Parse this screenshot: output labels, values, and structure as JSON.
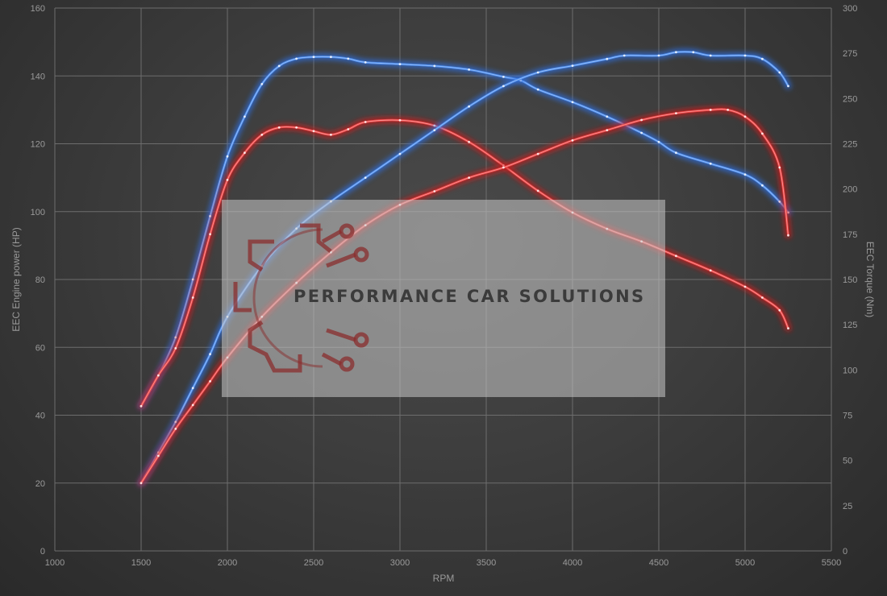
{
  "chart_data": {
    "type": "line",
    "x_axis": {
      "label": "RPM",
      "range": [
        1000,
        5500
      ],
      "ticks": [
        1000,
        1500,
        2000,
        2500,
        3000,
        3500,
        4000,
        4500,
        5000,
        5500
      ]
    },
    "y_axis_left": {
      "label": "EEC Engine power (HP)",
      "range": [
        0,
        160
      ],
      "ticks": [
        0,
        20,
        40,
        60,
        80,
        100,
        120,
        140,
        160
      ]
    },
    "y_axis_right": {
      "label": "EEC Torque (Nm)",
      "range": [
        0,
        300
      ],
      "ticks": [
        0,
        25,
        50,
        75,
        100,
        125,
        150,
        175,
        200,
        225,
        250,
        275,
        300
      ]
    },
    "grid": true,
    "watermark": "PERFORMANCE CAR SOLUTIONS",
    "series": [
      {
        "axis": "right",
        "color": "#4e8ff0",
        "glow": "#2f6fe0",
        "points": [
          [
            1500,
            80
          ],
          [
            1600,
            97
          ],
          [
            1700,
            118
          ],
          [
            1800,
            150
          ],
          [
            1900,
            185
          ],
          [
            2000,
            218
          ],
          [
            2100,
            240
          ],
          [
            2200,
            258
          ],
          [
            2300,
            268
          ],
          [
            2400,
            272
          ],
          [
            2500,
            273
          ],
          [
            2600,
            273
          ],
          [
            2700,
            272
          ],
          [
            2800,
            270
          ],
          [
            3000,
            269
          ],
          [
            3200,
            268
          ],
          [
            3400,
            266
          ],
          [
            3600,
            262
          ],
          [
            3700,
            260
          ],
          [
            3800,
            255
          ],
          [
            4000,
            248
          ],
          [
            4200,
            240
          ],
          [
            4400,
            231
          ],
          [
            4500,
            226
          ],
          [
            4600,
            220
          ],
          [
            4800,
            214
          ],
          [
            5000,
            208
          ],
          [
            5100,
            202
          ],
          [
            5200,
            193
          ],
          [
            5250,
            187
          ]
        ]
      },
      {
        "axis": "right",
        "color": "#f04848",
        "glow": "#d01e1e",
        "points": [
          [
            1500,
            80
          ],
          [
            1600,
            97
          ],
          [
            1700,
            112
          ],
          [
            1800,
            140
          ],
          [
            1900,
            175
          ],
          [
            2000,
            205
          ],
          [
            2100,
            220
          ],
          [
            2200,
            230
          ],
          [
            2300,
            234
          ],
          [
            2400,
            234
          ],
          [
            2500,
            232
          ],
          [
            2600,
            230
          ],
          [
            2700,
            233
          ],
          [
            2800,
            237
          ],
          [
            3000,
            238
          ],
          [
            3200,
            235
          ],
          [
            3400,
            226
          ],
          [
            3600,
            213
          ],
          [
            3800,
            199
          ],
          [
            4000,
            187
          ],
          [
            4200,
            178
          ],
          [
            4400,
            171
          ],
          [
            4600,
            163
          ],
          [
            4800,
            155
          ],
          [
            5000,
            146
          ],
          [
            5100,
            140
          ],
          [
            5200,
            133
          ],
          [
            5250,
            123
          ]
        ]
      },
      {
        "axis": "left",
        "color": "#4e8ff0",
        "glow": "#2f6fe0",
        "points": [
          [
            1500,
            20
          ],
          [
            1600,
            29
          ],
          [
            1700,
            38
          ],
          [
            1800,
            48
          ],
          [
            1900,
            58
          ],
          [
            2000,
            69
          ],
          [
            2200,
            84
          ],
          [
            2400,
            95
          ],
          [
            2600,
            103
          ],
          [
            2800,
            110
          ],
          [
            3000,
            117
          ],
          [
            3200,
            124
          ],
          [
            3400,
            131
          ],
          [
            3600,
            137
          ],
          [
            3800,
            141
          ],
          [
            4000,
            143
          ],
          [
            4200,
            145
          ],
          [
            4300,
            146
          ],
          [
            4500,
            146
          ],
          [
            4600,
            147
          ],
          [
            4700,
            147
          ],
          [
            4800,
            146
          ],
          [
            5000,
            146
          ],
          [
            5100,
            145
          ],
          [
            5200,
            141
          ],
          [
            5250,
            137
          ]
        ]
      },
      {
        "axis": "left",
        "color": "#f04848",
        "glow": "#d01e1e",
        "points": [
          [
            1500,
            20
          ],
          [
            1600,
            28
          ],
          [
            1700,
            36
          ],
          [
            1800,
            43
          ],
          [
            1900,
            50
          ],
          [
            2000,
            57
          ],
          [
            2200,
            69
          ],
          [
            2400,
            79
          ],
          [
            2600,
            88
          ],
          [
            2800,
            96
          ],
          [
            3000,
            102
          ],
          [
            3200,
            106
          ],
          [
            3400,
            110
          ],
          [
            3600,
            113
          ],
          [
            3800,
            117
          ],
          [
            4000,
            121
          ],
          [
            4200,
            124
          ],
          [
            4400,
            127
          ],
          [
            4600,
            129
          ],
          [
            4800,
            130
          ],
          [
            4900,
            130
          ],
          [
            5000,
            128
          ],
          [
            5100,
            123
          ],
          [
            5200,
            113
          ],
          [
            5250,
            93
          ]
        ]
      }
    ]
  }
}
